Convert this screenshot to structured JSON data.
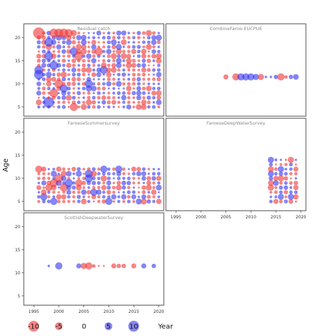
{
  "chart_data": {
    "type": "scatter",
    "ylabel": "Age",
    "xlabel": "Year",
    "xlim": [
      1993,
      2021
    ],
    "ylim": [
      3,
      23
    ],
    "x_ticks": [
      1995,
      2000,
      2005,
      2010,
      2015,
      2020
    ],
    "y_ticks": [
      5,
      10,
      15,
      20
    ],
    "colors": {
      "positive": "#3333ee",
      "negative": "#ee3333"
    },
    "legend": {
      "entries": [
        {
          "label": "-10",
          "value": -10
        },
        {
          "label": "-5",
          "value": -5
        },
        {
          "label": "0",
          "value": 0
        },
        {
          "label": "5",
          "value": 5
        },
        {
          "label": "10",
          "value": 10
        }
      ],
      "axis_label": "Year"
    },
    "panels": [
      {
        "name": "Residual catch",
        "title": "Residual catch",
        "x_axis": false,
        "years": [
          1996,
          2020
        ],
        "ages": [
          5,
          21
        ],
        "seed": 7,
        "big": [
          {
            "x": 1996,
            "y": 21,
            "r": -10
          },
          {
            "x": 1999,
            "y": 21,
            "r": -6
          },
          {
            "x": 2000,
            "y": 21,
            "r": -6
          },
          {
            "x": 2001,
            "y": 21,
            "r": -6
          },
          {
            "x": 2002,
            "y": 21,
            "r": -5
          },
          {
            "x": 1996,
            "y": 12,
            "r": 7
          },
          {
            "x": 1996,
            "y": 13,
            "r": 6
          },
          {
            "x": 1998,
            "y": 16,
            "r": 6
          },
          {
            "x": 1998,
            "y": 19,
            "r": 6
          },
          {
            "x": 1998,
            "y": 6,
            "r": 9
          },
          {
            "x": 1999,
            "y": 14,
            "r": 6
          },
          {
            "x": 1999,
            "y": 8,
            "r": -6
          },
          {
            "x": 2000,
            "y": 10,
            "r": -6
          },
          {
            "x": 2001,
            "y": 9,
            "r": 5
          },
          {
            "x": 2003,
            "y": 5,
            "r": -5
          },
          {
            "x": 2003,
            "y": 17,
            "r": 5
          },
          {
            "x": 2004,
            "y": 16,
            "r": -6
          },
          {
            "x": 2006,
            "y": 10,
            "r": 5
          },
          {
            "x": 1995,
            "y": 7,
            "r": -5
          },
          {
            "x": 2008,
            "y": 17,
            "r": -5
          },
          {
            "x": 2009,
            "y": 13,
            "r": 5
          }
        ]
      },
      {
        "name": "CombineFaroe-EUCPUE",
        "title": "CombineFaroe-EUCPUE",
        "x_axis": false,
        "points": [
          {
            "x": 2005,
            "y": 11.5,
            "r": -2
          },
          {
            "x": 2007,
            "y": 11.5,
            "r": -4
          },
          {
            "x": 2008,
            "y": 11.5,
            "r": 4
          },
          {
            "x": 2009,
            "y": 11.5,
            "r": 4
          },
          {
            "x": 2010,
            "y": 11.5,
            "r": 4
          },
          {
            "x": 2011,
            "y": 11.5,
            "r": 3
          },
          {
            "x": 2012,
            "y": 11.5,
            "r": -3
          },
          {
            "x": 2013,
            "y": 11.5,
            "r": 0.5
          },
          {
            "x": 2014,
            "y": 11.5,
            "r": 0.5
          },
          {
            "x": 2015,
            "y": 11.5,
            "r": 1.5
          },
          {
            "x": 2016,
            "y": 11.5,
            "r": -4
          },
          {
            "x": 2017,
            "y": 11.5,
            "r": -1
          },
          {
            "x": 2018,
            "y": 11.5,
            "r": 1.5
          },
          {
            "x": 2019,
            "y": 11.5,
            "r": 2.5
          }
        ]
      },
      {
        "name": "FaroeseSummersurvey",
        "title": "FaroeseSummersurvey",
        "x_axis": false,
        "years": [
          1996,
          2020
        ],
        "ages": [
          5,
          12
        ],
        "seed": 23,
        "big": [
          {
            "x": 1996,
            "y": 12,
            "r": -4
          },
          {
            "x": 1997,
            "y": 6,
            "r": 4
          },
          {
            "x": 1998,
            "y": 8,
            "r": -4
          },
          {
            "x": 1999,
            "y": 9,
            "r": -5
          },
          {
            "x": 2000,
            "y": 10,
            "r": -6
          },
          {
            "x": 2001,
            "y": 8,
            "r": -5
          },
          {
            "x": 1999,
            "y": 5,
            "r": 4
          },
          {
            "x": 2002,
            "y": 9,
            "r": 5
          },
          {
            "x": 2004,
            "y": 9,
            "r": -4
          },
          {
            "x": 2006,
            "y": 11,
            "r": 5
          },
          {
            "x": 2006,
            "y": 10,
            "r": 5
          },
          {
            "x": 2007,
            "y": 7,
            "r": 4
          },
          {
            "x": 2009,
            "y": 12,
            "r": 4
          },
          {
            "x": 2010,
            "y": 5,
            "r": 4
          },
          {
            "x": 2012,
            "y": 12,
            "r": 4
          }
        ]
      },
      {
        "name": "FaroeseDeepWaterSurvey",
        "title": "FaroeseDeepWaterSurvey",
        "x_axis": true,
        "years": [
          2014,
          2019
        ],
        "ages": [
          5,
          14
        ],
        "seed": 41,
        "big": [
          {
            "x": 2014,
            "y": 14,
            "r": 3
          },
          {
            "x": 2018,
            "y": 14,
            "r": -3
          },
          {
            "x": 2014,
            "y": 8,
            "r": -3
          },
          {
            "x": 2016,
            "y": 12,
            "r": 3
          }
        ]
      },
      {
        "name": "ScottishDeepwaterSurvey",
        "title": "ScottishDeepwaterSurvey",
        "x_axis": true,
        "points": [
          {
            "x": 1998,
            "y": 11.5,
            "r": 0.5
          },
          {
            "x": 2000,
            "y": 11.5,
            "r": 4
          },
          {
            "x": 2004,
            "y": 11.5,
            "r": 2
          },
          {
            "x": 2005,
            "y": 11.5,
            "r": -3
          },
          {
            "x": 2006,
            "y": 11.5,
            "r": -4
          },
          {
            "x": 2007,
            "y": 11.5,
            "r": -1
          },
          {
            "x": 2008,
            "y": 11.5,
            "r": -0.3
          },
          {
            "x": 2009,
            "y": 11.5,
            "r": -0.3
          },
          {
            "x": 2011,
            "y": 11.5,
            "r": -2
          },
          {
            "x": 2012,
            "y": 11.5,
            "r": -1.5
          },
          {
            "x": 2013,
            "y": 11.5,
            "r": -1.5
          },
          {
            "x": 2015,
            "y": 11.5,
            "r": -2
          },
          {
            "x": 2017,
            "y": 11.5,
            "r": 2
          },
          {
            "x": 2019,
            "y": 11.5,
            "r": 1.5
          }
        ]
      }
    ]
  }
}
